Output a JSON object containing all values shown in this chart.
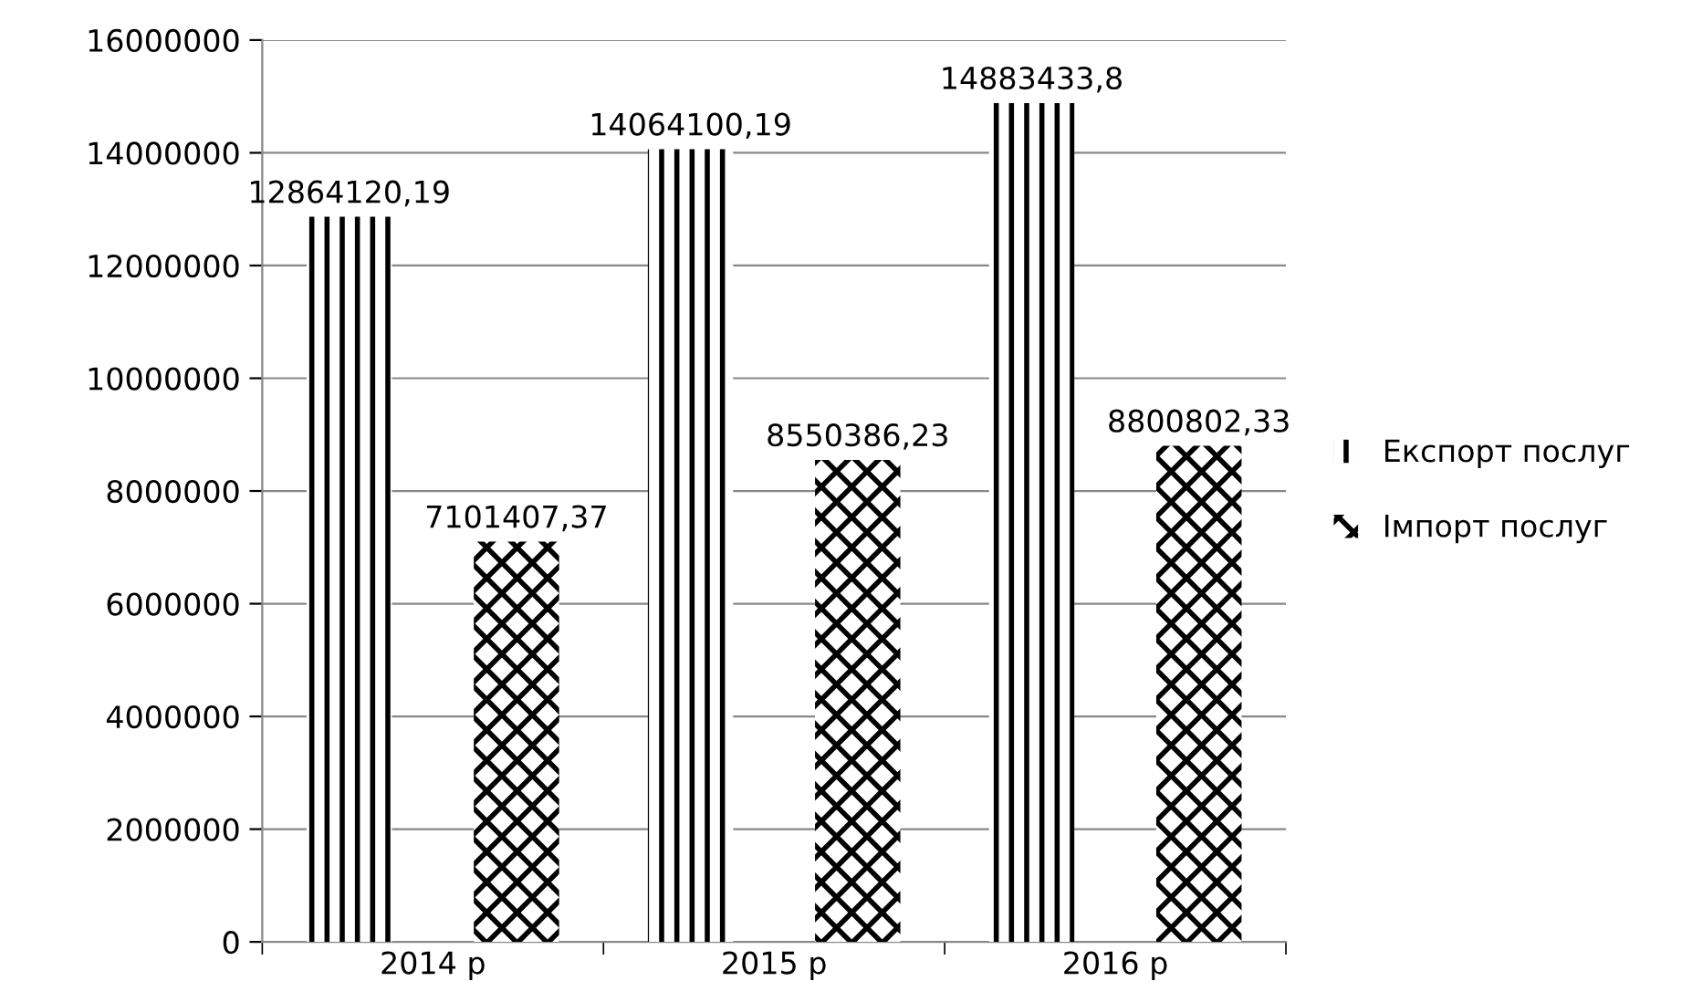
{
  "chart_data": {
    "type": "bar",
    "categories": [
      "2014 р",
      "2015 р",
      "2016 р"
    ],
    "series": [
      {
        "name": "Експорт послуг",
        "color": "#000000",
        "values": [
          12864120.19,
          14064100.19,
          14883433.8
        ],
        "value_labels": [
          "12864120,19",
          "14064100,19",
          "14883433,8"
        ]
      },
      {
        "name": "Імпорт послуг",
        "color": "#000000",
        "values": [
          7101407.37,
          8550386.23,
          8800802.33
        ],
        "value_labels": [
          "7101407,37",
          "8550386,23",
          "8800802,33"
        ]
      }
    ],
    "ylim": [
      0,
      16000000
    ],
    "yticks": [
      0,
      2000000,
      4000000,
      6000000,
      8000000,
      10000000,
      12000000,
      14000000,
      16000000
    ],
    "grid": "y",
    "legend": "right"
  }
}
